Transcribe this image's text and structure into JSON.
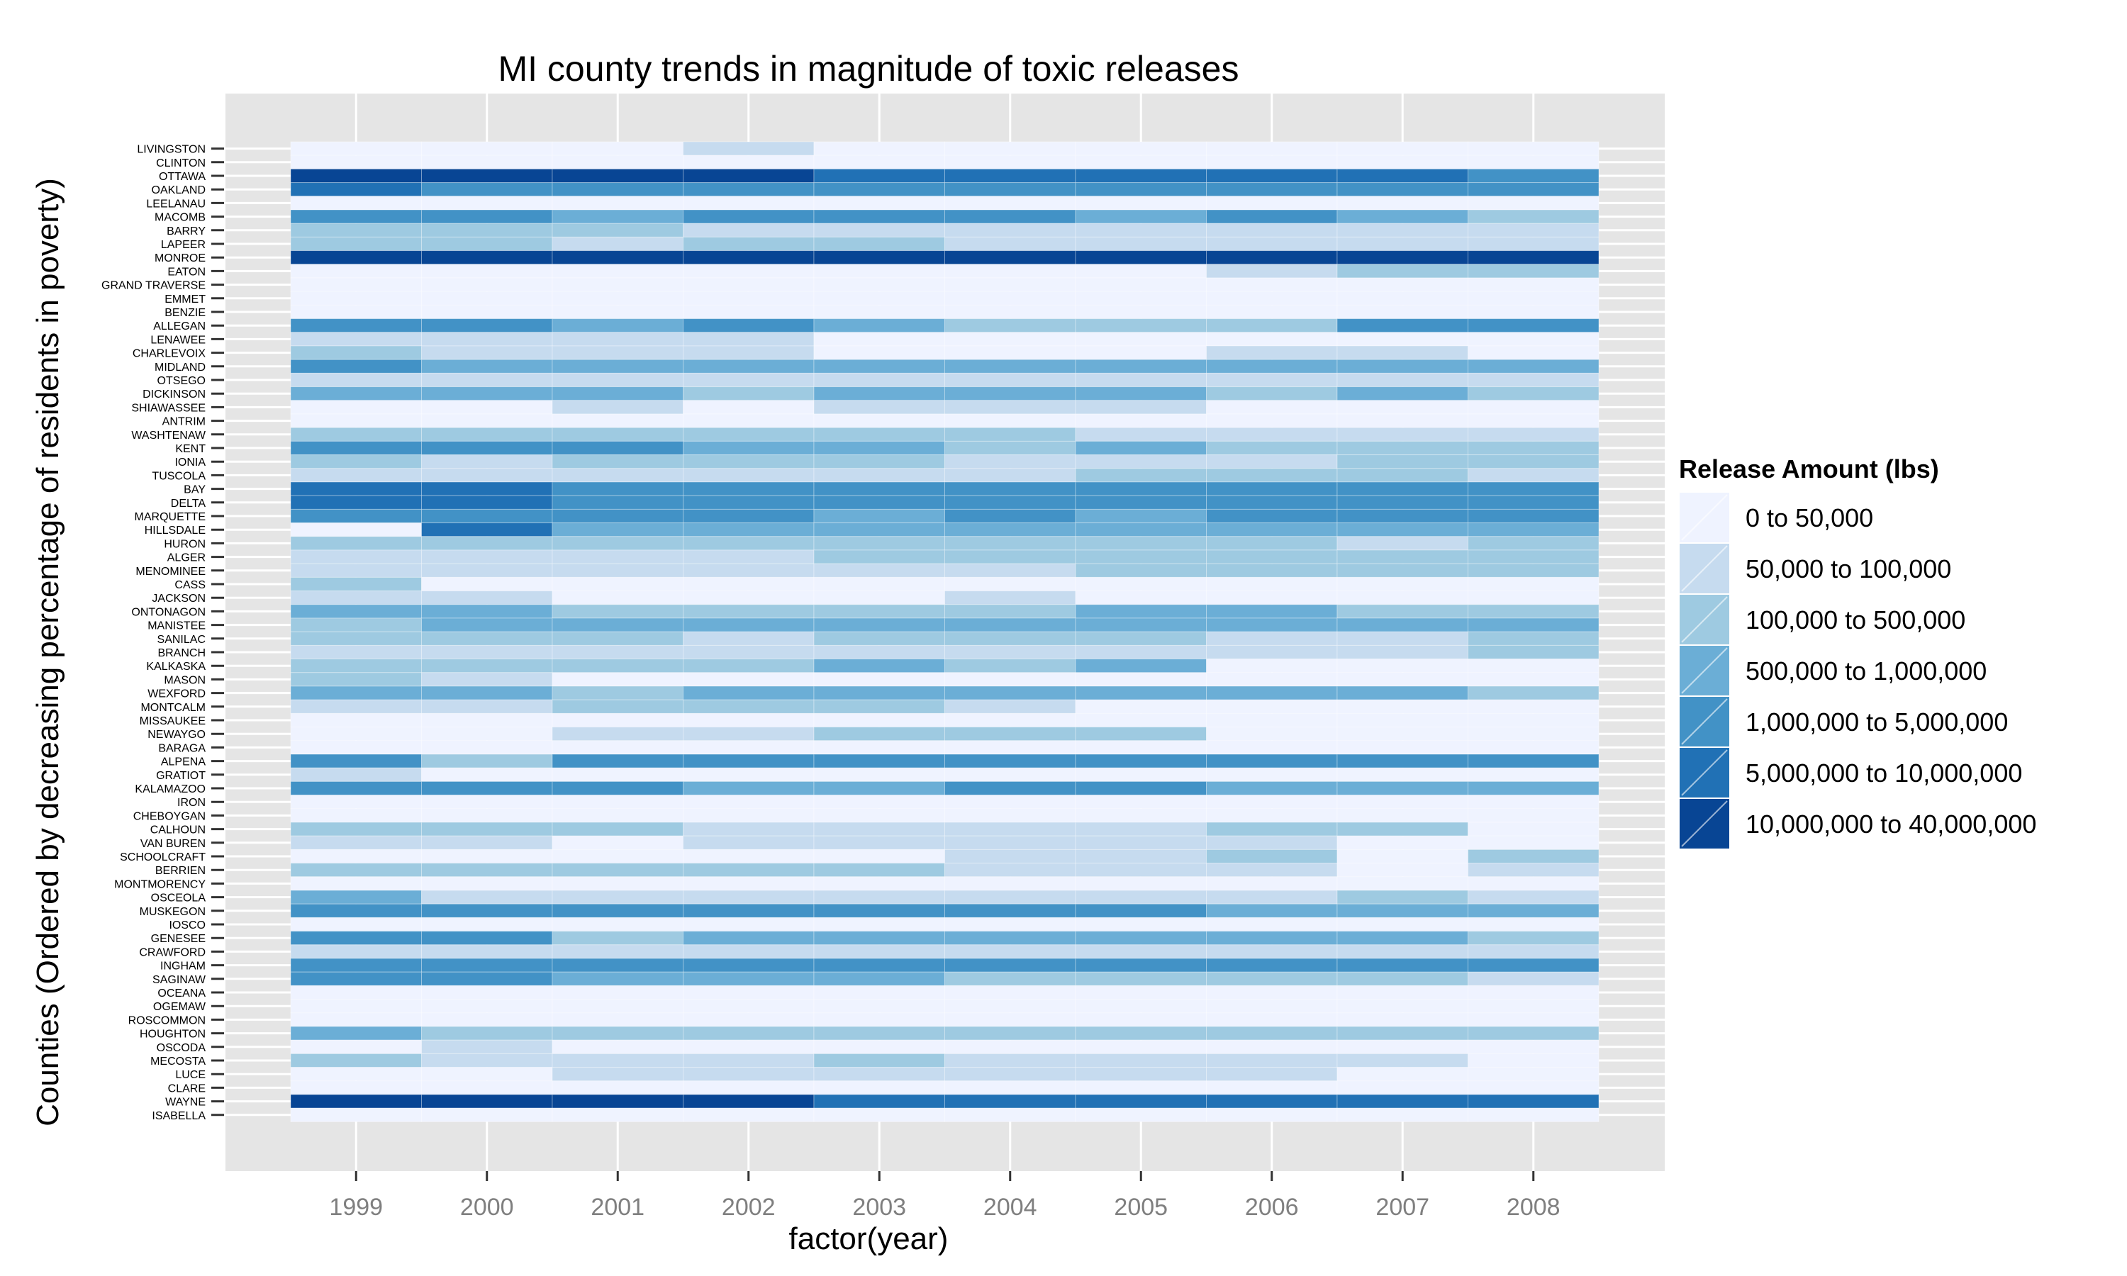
{
  "chart_data": {
    "type": "heatmap",
    "title": "MI county trends in magnitude of toxic releases",
    "xlabel": "factor(year)",
    "ylabel": "Counties (Ordered by decreasing percentage of residents in poverty)",
    "x": [
      "1999",
      "2000",
      "2001",
      "2002",
      "2003",
      "2004",
      "2005",
      "2006",
      "2007",
      "2008"
    ],
    "legend": {
      "title": "Release Amount (lbs)",
      "position": "right",
      "categories": [
        "0 to 50,000",
        "50,000 to 100,000",
        "100,000 to 500,000",
        "500,000 to 1,000,000",
        "1,000,000 to 5,000,000",
        "5,000,000 to 10,000,000",
        "10,000,000 to 40,000,000"
      ],
      "colors": [
        "#eff3ff",
        "#c6dbef",
        "#9ecae1",
        "#6baed6",
        "#4292c6",
        "#2171b5",
        "#084594"
      ]
    },
    "counties": [
      "LIVINGSTON",
      "CLINTON",
      "OTTAWA",
      "OAKLAND",
      "LEELANAU",
      "MACOMB",
      "BARRY",
      "LAPEER",
      "MONROE",
      "EATON",
      "GRAND TRAVERSE",
      "EMMET",
      "BENZIE",
      "ALLEGAN",
      "LENAWEE",
      "CHARLEVOIX",
      "MIDLAND",
      "OTSEGO",
      "DICKINSON",
      "SHIAWASSEE",
      "ANTRIM",
      "WASHTENAW",
      "KENT",
      "IONIA",
      "TUSCOLA",
      "BAY",
      "DELTA",
      "MARQUETTE",
      "HILLSDALE",
      "HURON",
      "ALGER",
      "MENOMINEE",
      "CASS",
      "JACKSON",
      "ONTONAGON",
      "MANISTEE",
      "SANILAC",
      "BRANCH",
      "KALKASKA",
      "MASON",
      "WEXFORD",
      "MONTCALM",
      "MISSAUKEE",
      "NEWAYGO",
      "BARAGA",
      "ALPENA",
      "GRATIOT",
      "KALAMAZOO",
      "IRON",
      "CHEBOYGAN",
      "CALHOUN",
      "VAN BUREN",
      "SCHOOLCRAFT",
      "BERRIEN",
      "MONTMORENCY",
      "OSCEOLA",
      "MUSKEGON",
      "IOSCO",
      "GENESEE",
      "CRAWFORD",
      "INGHAM",
      "SAGINAW",
      "OCEANA",
      "OGEMAW",
      "ROSCOMMON",
      "HOUGHTON",
      "OSCODA",
      "MECOSTA",
      "LUCE",
      "CLARE",
      "WAYNE",
      "ISABELLA"
    ],
    "values": [
      [
        0,
        0,
        0,
        1,
        0,
        0,
        0,
        0,
        0,
        0
      ],
      [
        0,
        0,
        0,
        0,
        0,
        0,
        0,
        0,
        0,
        0
      ],
      [
        6,
        6,
        6,
        6,
        5,
        5,
        5,
        5,
        5,
        4
      ],
      [
        5,
        4,
        4,
        4,
        4,
        4,
        4,
        4,
        4,
        4
      ],
      [
        0,
        0,
        0,
        0,
        0,
        0,
        0,
        0,
        0,
        0
      ],
      [
        4,
        4,
        3,
        4,
        4,
        4,
        3,
        4,
        3,
        2
      ],
      [
        2,
        2,
        2,
        1,
        1,
        1,
        1,
        1,
        1,
        1
      ],
      [
        2,
        2,
        1,
        2,
        2,
        1,
        1,
        1,
        1,
        1
      ],
      [
        6,
        6,
        6,
        6,
        6,
        6,
        6,
        6,
        6,
        6
      ],
      [
        0,
        0,
        0,
        0,
        0,
        0,
        0,
        1,
        2,
        2
      ],
      [
        0,
        0,
        0,
        0,
        0,
        0,
        0,
        0,
        0,
        0
      ],
      [
        0,
        0,
        0,
        0,
        0,
        0,
        0,
        0,
        0,
        0
      ],
      [
        0,
        0,
        0,
        0,
        0,
        0,
        0,
        0,
        0,
        0
      ],
      [
        4,
        4,
        3,
        4,
        3,
        2,
        2,
        2,
        4,
        4
      ],
      [
        1,
        1,
        1,
        1,
        0,
        0,
        0,
        0,
        0,
        0
      ],
      [
        2,
        1,
        1,
        1,
        0,
        0,
        0,
        1,
        1,
        0
      ],
      [
        4,
        3,
        3,
        3,
        3,
        3,
        3,
        3,
        3,
        3
      ],
      [
        1,
        1,
        1,
        1,
        1,
        1,
        1,
        1,
        1,
        1
      ],
      [
        3,
        3,
        3,
        2,
        3,
        3,
        3,
        2,
        3,
        2
      ],
      [
        0,
        0,
        1,
        0,
        1,
        1,
        1,
        0,
        0,
        0
      ],
      [
        0,
        0,
        0,
        0,
        0,
        0,
        0,
        0,
        0,
        0
      ],
      [
        2,
        2,
        2,
        2,
        2,
        2,
        1,
        1,
        1,
        1
      ],
      [
        4,
        4,
        4,
        3,
        3,
        2,
        3,
        2,
        2,
        2
      ],
      [
        2,
        1,
        2,
        2,
        2,
        1,
        1,
        1,
        2,
        2
      ],
      [
        1,
        1,
        1,
        1,
        1,
        1,
        2,
        2,
        2,
        1
      ],
      [
        5,
        5,
        4,
        4,
        4,
        4,
        4,
        4,
        4,
        4
      ],
      [
        5,
        5,
        4,
        4,
        4,
        4,
        4,
        4,
        4,
        4
      ],
      [
        4,
        4,
        4,
        4,
        3,
        4,
        3,
        4,
        4,
        4
      ],
      [
        0,
        5,
        3,
        3,
        3,
        3,
        3,
        3,
        3,
        3
      ],
      [
        2,
        2,
        2,
        2,
        2,
        2,
        2,
        2,
        1,
        2
      ],
      [
        1,
        1,
        1,
        1,
        2,
        2,
        2,
        2,
        2,
        2
      ],
      [
        1,
        1,
        1,
        1,
        1,
        1,
        2,
        2,
        2,
        2
      ],
      [
        2,
        0,
        0,
        0,
        0,
        0,
        0,
        0,
        0,
        0
      ],
      [
        1,
        1,
        0,
        0,
        0,
        1,
        0,
        0,
        0,
        0
      ],
      [
        3,
        3,
        2,
        2,
        2,
        2,
        3,
        3,
        2,
        2
      ],
      [
        2,
        3,
        3,
        3,
        3,
        3,
        3,
        3,
        3,
        3
      ],
      [
        2,
        2,
        2,
        1,
        2,
        2,
        2,
        1,
        1,
        2
      ],
      [
        1,
        1,
        1,
        1,
        1,
        1,
        1,
        1,
        1,
        2
      ],
      [
        2,
        2,
        2,
        2,
        3,
        2,
        3,
        0,
        0,
        0
      ],
      [
        2,
        1,
        0,
        0,
        0,
        0,
        0,
        0,
        0,
        0
      ],
      [
        3,
        3,
        2,
        3,
        3,
        3,
        3,
        3,
        3,
        2
      ],
      [
        1,
        1,
        2,
        2,
        2,
        1,
        0,
        0,
        0,
        0
      ],
      [
        0,
        0,
        0,
        0,
        0,
        0,
        0,
        0,
        0,
        0
      ],
      [
        0,
        0,
        1,
        1,
        2,
        2,
        2,
        0,
        0,
        0
      ],
      [
        0,
        0,
        0,
        0,
        0,
        0,
        0,
        0,
        0,
        0
      ],
      [
        4,
        2,
        4,
        4,
        4,
        4,
        4,
        4,
        4,
        4
      ],
      [
        1,
        0,
        0,
        0,
        0,
        0,
        0,
        0,
        0,
        0
      ],
      [
        4,
        4,
        4,
        3,
        3,
        4,
        4,
        3,
        3,
        3
      ],
      [
        0,
        0,
        0,
        0,
        0,
        0,
        0,
        0,
        0,
        0
      ],
      [
        0,
        0,
        0,
        0,
        0,
        0,
        0,
        0,
        0,
        0
      ],
      [
        2,
        2,
        2,
        1,
        1,
        1,
        1,
        2,
        2,
        0
      ],
      [
        1,
        1,
        0,
        1,
        1,
        1,
        1,
        1,
        0,
        0
      ],
      [
        0,
        0,
        0,
        0,
        0,
        1,
        1,
        2,
        0,
        2
      ],
      [
        2,
        2,
        2,
        2,
        2,
        1,
        1,
        1,
        0,
        1
      ],
      [
        0,
        0,
        0,
        0,
        0,
        0,
        0,
        0,
        0,
        0
      ],
      [
        3,
        1,
        1,
        1,
        1,
        1,
        1,
        1,
        2,
        1
      ],
      [
        4,
        4,
        4,
        4,
        4,
        4,
        4,
        3,
        3,
        3
      ],
      [
        0,
        0,
        0,
        0,
        0,
        0,
        0,
        0,
        0,
        0
      ],
      [
        4,
        4,
        2,
        3,
        3,
        3,
        3,
        3,
        3,
        2
      ],
      [
        1,
        1,
        1,
        1,
        1,
        1,
        1,
        1,
        1,
        1
      ],
      [
        4,
        4,
        4,
        4,
        4,
        4,
        4,
        4,
        4,
        4
      ],
      [
        4,
        4,
        3,
        3,
        3,
        2,
        2,
        2,
        2,
        1
      ],
      [
        0,
        0,
        0,
        0,
        0,
        0,
        0,
        0,
        0,
        0
      ],
      [
        0,
        0,
        0,
        0,
        0,
        0,
        0,
        0,
        0,
        0
      ],
      [
        0,
        0,
        0,
        0,
        0,
        0,
        0,
        0,
        0,
        0
      ],
      [
        3,
        2,
        2,
        2,
        2,
        2,
        2,
        2,
        2,
        2
      ],
      [
        0,
        1,
        0,
        0,
        0,
        0,
        0,
        0,
        0,
        0
      ],
      [
        2,
        1,
        1,
        1,
        2,
        1,
        1,
        1,
        1,
        0
      ],
      [
        0,
        0,
        1,
        1,
        1,
        1,
        1,
        1,
        0,
        0
      ],
      [
        0,
        0,
        0,
        0,
        0,
        0,
        0,
        0,
        0,
        0
      ],
      [
        6,
        6,
        6,
        6,
        5,
        5,
        5,
        5,
        5,
        5
      ],
      [
        0,
        0,
        0,
        0,
        0,
        0,
        0,
        0,
        0,
        0
      ]
    ]
  }
}
